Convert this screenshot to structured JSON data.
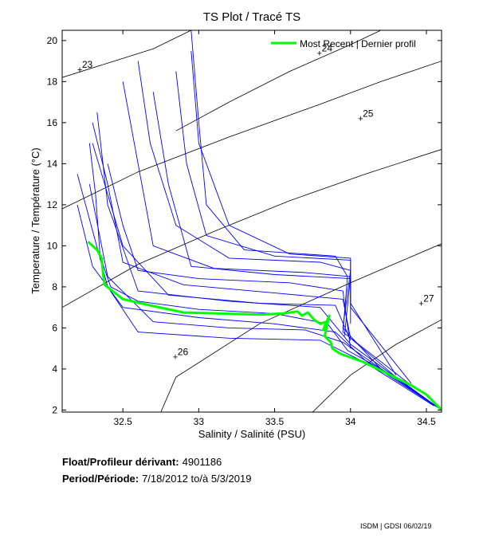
{
  "chart_data": {
    "type": "scatter",
    "title": "TS Plot / Tracé TS",
    "xlabel": "Salinity / Salinité (PSU)",
    "ylabel": "Temperature / Température (°C)",
    "xlim": [
      32.1,
      34.6
    ],
    "ylim": [
      1.9,
      20.5
    ],
    "xticks": [
      32.5,
      33,
      33.5,
      34,
      34.5
    ],
    "xtick_labels": [
      "32.5",
      "33",
      "33.5",
      "34",
      "34.5"
    ],
    "yticks": [
      2,
      4,
      6,
      8,
      10,
      12,
      14,
      16,
      18,
      20
    ],
    "ytick_labels": [
      "2",
      "4",
      "6",
      "8",
      "10",
      "12",
      "14",
      "16",
      "18",
      "20"
    ],
    "legend": {
      "position": "top-right",
      "label": "Most Recent | Dernier profil"
    },
    "density_contours": [
      {
        "label": "23",
        "label_at": [
          32.22,
          18.6
        ],
        "points": [
          [
            32.1,
            18.2
          ],
          [
            32.4,
            18.9
          ],
          [
            32.7,
            19.6
          ],
          [
            32.95,
            20.5
          ]
        ]
      },
      {
        "label": "24",
        "label_at": [
          33.8,
          19.4
        ],
        "points": [
          [
            32.85,
            15.6
          ],
          [
            33.2,
            17.0
          ],
          [
            33.6,
            18.5
          ],
          [
            34.0,
            19.8
          ],
          [
            34.2,
            20.5
          ]
        ]
      },
      {
        "label": "25",
        "label_at": [
          34.07,
          16.2
        ],
        "points": [
          [
            32.1,
            11.8
          ],
          [
            32.6,
            13.6
          ],
          [
            33.2,
            15.3
          ],
          [
            33.8,
            16.9
          ],
          [
            34.2,
            18.0
          ],
          [
            34.6,
            19.0
          ]
        ]
      },
      {
        "label": "26",
        "label_at": [
          32.85,
          4.6
        ],
        "points": [
          [
            32.1,
            7.0
          ],
          [
            32.6,
            9.1
          ],
          [
            33.1,
            10.7
          ],
          [
            33.6,
            12.2
          ],
          [
            34.1,
            13.5
          ],
          [
            34.6,
            14.7
          ]
        ]
      },
      {
        "label": "27",
        "label_at": [
          34.47,
          7.2
        ],
        "points": [
          [
            32.75,
            1.9
          ],
          [
            32.85,
            3.6
          ],
          [
            33.4,
            6.2
          ],
          [
            34.0,
            8.2
          ],
          [
            34.6,
            10.1
          ]
        ]
      },
      {
        "label": "",
        "label_at": null,
        "points": [
          [
            33.75,
            1.9
          ],
          [
            34.0,
            3.7
          ],
          [
            34.3,
            5.2
          ],
          [
            34.6,
            6.4
          ]
        ]
      }
    ],
    "series": [
      {
        "name": "All profiles",
        "color": "#0000ff",
        "description": "Historical profiles (blue)",
        "values": [
          [
            [
              32.28,
              15.0
            ],
            [
              32.32,
              12.5
            ],
            [
              32.35,
              9.5
            ],
            [
              32.42,
              8.0
            ],
            [
              32.6,
              7.3
            ],
            [
              33.0,
              6.9
            ],
            [
              33.5,
              6.7
            ],
            [
              33.85,
              6.2
            ],
            [
              33.98,
              4.9
            ],
            [
              34.25,
              3.8
            ],
            [
              34.6,
              2.0
            ]
          ],
          [
            [
              32.3,
              16.0
            ],
            [
              32.4,
              13.0
            ],
            [
              32.5,
              9.2
            ],
            [
              32.9,
              8.1
            ],
            [
              33.5,
              7.7
            ],
            [
              33.95,
              7.4
            ],
            [
              34.0,
              5.5
            ],
            [
              34.3,
              3.6
            ],
            [
              34.6,
              2.0
            ]
          ],
          [
            [
              32.6,
              19.0
            ],
            [
              32.68,
              15.0
            ],
            [
              32.85,
              11.0
            ],
            [
              33.2,
              9.4
            ],
            [
              33.8,
              9.2
            ],
            [
              34.0,
              8.8
            ],
            [
              33.95,
              6.0
            ],
            [
              34.2,
              4.0
            ],
            [
              34.6,
              2.0
            ]
          ],
          [
            [
              32.85,
              18.5
            ],
            [
              32.92,
              14.0
            ],
            [
              33.05,
              10.5
            ],
            [
              33.5,
              9.5
            ],
            [
              34.0,
              9.3
            ],
            [
              34.0,
              7.0
            ],
            [
              34.4,
              3.3
            ]
          ],
          [
            [
              32.95,
              20.5
            ],
            [
              33.0,
              16.0
            ],
            [
              33.05,
              12.0
            ],
            [
              33.3,
              9.8
            ],
            [
              33.9,
              9.5
            ],
            [
              33.98,
              8.5
            ],
            [
              33.95,
              5.8
            ],
            [
              34.4,
              3.2
            ]
          ],
          [
            [
              32.4,
              14.0
            ],
            [
              32.5,
              11.0
            ],
            [
              32.6,
              8.8
            ],
            [
              33.0,
              8.4
            ],
            [
              33.6,
              8.2
            ],
            [
              33.95,
              7.8
            ],
            [
              34.0,
              5.0
            ]
          ],
          [
            [
              32.2,
              12.0
            ],
            [
              32.3,
              9.0
            ],
            [
              32.5,
              7.0
            ],
            [
              33.0,
              6.5
            ],
            [
              33.5,
              6.2
            ],
            [
              33.9,
              5.8
            ],
            [
              34.1,
              4.4
            ],
            [
              34.6,
              2.0
            ]
          ],
          [
            [
              32.7,
              17.5
            ],
            [
              32.8,
              13.0
            ],
            [
              32.95,
              9.0
            ],
            [
              33.5,
              8.6
            ],
            [
              34.0,
              8.4
            ],
            [
              34.0,
              6.2
            ]
          ],
          [
            [
              32.33,
              16.5
            ],
            [
              32.4,
              12.0
            ],
            [
              32.6,
              7.8
            ],
            [
              33.2,
              7.3
            ],
            [
              33.8,
              7.0
            ],
            [
              34.0,
              5.2
            ],
            [
              34.5,
              2.5
            ]
          ],
          [
            [
              32.5,
              18.0
            ],
            [
              32.6,
              14.0
            ],
            [
              32.7,
              10.0
            ],
            [
              33.1,
              8.9
            ],
            [
              33.7,
              8.7
            ],
            [
              34.0,
              8.5
            ],
            [
              33.96,
              5.6
            ]
          ],
          [
            [
              32.28,
              13.0
            ],
            [
              32.4,
              8.5
            ],
            [
              32.7,
              6.3
            ],
            [
              33.2,
              6.0
            ],
            [
              33.7,
              5.9
            ],
            [
              33.95,
              5.3
            ],
            [
              34.3,
              3.5
            ]
          ],
          [
            [
              32.95,
              19.5
            ],
            [
              33.0,
              15.0
            ],
            [
              33.2,
              11.0
            ],
            [
              33.6,
              9.6
            ],
            [
              34.0,
              9.4
            ],
            [
              34.0,
              7.2
            ],
            [
              34.3,
              3.7
            ]
          ],
          [
            [
              32.3,
              15.0
            ],
            [
              32.5,
              10.0
            ],
            [
              32.8,
              7.6
            ],
            [
              33.4,
              7.2
            ],
            [
              33.9,
              7.1
            ],
            [
              34.0,
              5.4
            ]
          ],
          [
            [
              32.2,
              13.5
            ],
            [
              32.4,
              8.0
            ],
            [
              32.6,
              5.8
            ],
            [
              33.2,
              5.5
            ],
            [
              33.8,
              5.4
            ],
            [
              34.1,
              4.3
            ],
            [
              34.55,
              2.2
            ]
          ]
        ]
      },
      {
        "name": "Most Recent | Dernier profil",
        "color": "#00ff00",
        "values": [
          [
            32.27,
            10.2
          ],
          [
            32.33,
            9.8
          ],
          [
            32.36,
            9.4
          ],
          [
            32.37,
            8.6
          ],
          [
            32.38,
            8.1
          ],
          [
            32.5,
            7.4
          ],
          [
            32.68,
            7.1
          ],
          [
            32.9,
            6.75
          ],
          [
            33.15,
            6.7
          ],
          [
            33.4,
            6.65
          ],
          [
            33.55,
            6.7
          ],
          [
            33.65,
            6.8
          ],
          [
            33.68,
            6.6
          ],
          [
            33.72,
            6.75
          ],
          [
            33.76,
            6.4
          ],
          [
            33.8,
            6.2
          ],
          [
            33.84,
            6.3
          ],
          [
            33.82,
            5.9
          ],
          [
            33.86,
            6.6
          ],
          [
            33.83,
            5.6
          ],
          [
            33.87,
            5.3
          ],
          [
            33.88,
            5.0
          ],
          [
            33.93,
            4.75
          ],
          [
            34.08,
            4.35
          ],
          [
            34.25,
            3.75
          ],
          [
            34.4,
            3.2
          ],
          [
            34.5,
            2.75
          ],
          [
            34.6,
            2.0
          ]
        ]
      }
    ]
  },
  "info": {
    "float_label": "Float/Profileur dérivant:",
    "float_value": "4901186",
    "period_label": "Period/Période:",
    "period_value": "7/18/2012  to/à  5/3/2019"
  },
  "credit": "ISDM | GDSI  06/02/19"
}
